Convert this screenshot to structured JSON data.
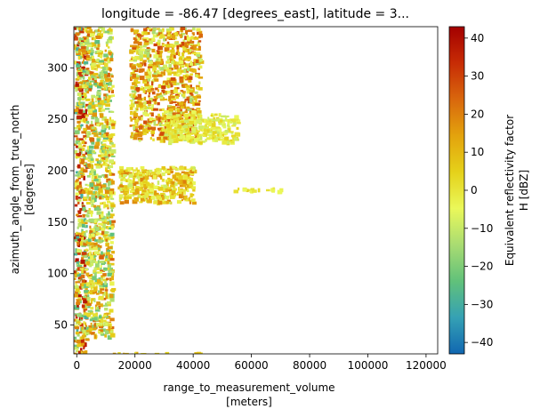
{
  "chart_data": {
    "type": "heatmap",
    "title": "longitude = -86.47 [degrees_east], latitude = 3...",
    "xlabel": "range_to_measurement_volume",
    "xlabel_units": "[meters]",
    "ylabel": "azimuth_angle_from_true_north",
    "ylabel_units": "[degrees]",
    "xlim": [
      -1000,
      124000
    ],
    "ylim": [
      22,
      340
    ],
    "x_ticks": [
      0,
      20000,
      40000,
      60000,
      80000,
      100000,
      120000
    ],
    "x_tick_labels": [
      "0",
      "20000",
      "40000",
      "60000",
      "80000",
      "100000",
      "120000"
    ],
    "y_ticks": [
      50,
      100,
      150,
      200,
      250,
      300
    ],
    "y_tick_labels": [
      "50",
      "100",
      "150",
      "200",
      "250",
      "300"
    ],
    "colorbar": {
      "label_line1": "Equivalent reflectivity factor",
      "label_line2": "H [dBZ]",
      "vmin": -43,
      "vmax": 43,
      "ticks": [
        -40,
        -30,
        -20,
        -10,
        0,
        10,
        20,
        30,
        40
      ],
      "tick_labels": [
        "−40",
        "−30",
        "−20",
        "−10",
        "0",
        "10",
        "20",
        "30",
        "40"
      ],
      "colormap": "HomeyerRainbow",
      "stops": [
        "#1167b1",
        "#35a1b4",
        "#61c17a",
        "#a9dc72",
        "#eaf85a",
        "#e5d11a",
        "#e3a30d",
        "#d9670d",
        "#c72c05",
        "#a30000"
      ]
    },
    "background": "#ffffff",
    "echo_regions": [
      {
        "feature": "near-range ground clutter",
        "x0": -1000,
        "x1": 3000,
        "y0": 22,
        "y1": 340,
        "dbz": [
          -30,
          40
        ]
      },
      {
        "feature": "near-range clutter",
        "x0": 3000,
        "x1": 12000,
        "y0": 40,
        "y1": 340,
        "dbz": [
          -25,
          25
        ]
      },
      {
        "feature": "main precipitation band",
        "x0": 18000,
        "x1": 42000,
        "y0": 230,
        "y1": 340,
        "dbz": [
          -15,
          30
        ]
      },
      {
        "feature": "precipitation trailing echoes",
        "x0": 30000,
        "x1": 55000,
        "y0": 228,
        "y1": 256,
        "dbz": [
          -10,
          5
        ]
      },
      {
        "feature": "scattered echoes",
        "x0": 14000,
        "x1": 40000,
        "y0": 170,
        "y1": 205,
        "dbz": [
          -10,
          20
        ]
      },
      {
        "feature": "thin radial echo",
        "x0": 53000,
        "x1": 70000,
        "y0": 181,
        "y1": 184,
        "dbz": [
          -5,
          5
        ]
      },
      {
        "feature": "low azimuth streak",
        "x0": 12000,
        "x1": 42000,
        "y0": 22,
        "y1": 24,
        "dbz": [
          0,
          15
        ]
      }
    ]
  }
}
